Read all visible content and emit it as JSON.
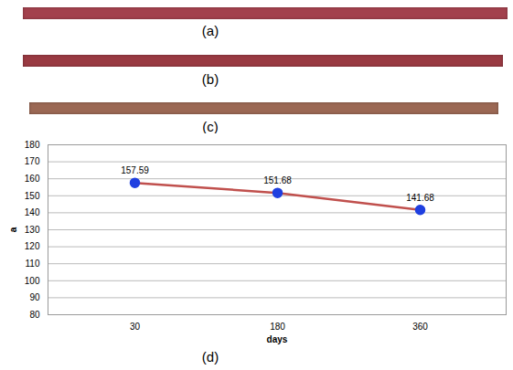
{
  "figure": {
    "strips": [
      {
        "label": "(a)",
        "color": "#a3414d"
      },
      {
        "label": "(b)",
        "color": "#993a42"
      },
      {
        "label": "(c)",
        "color": "#9b6854"
      }
    ]
  },
  "chart_data": {
    "type": "line",
    "title": "(d)",
    "x_label": "days",
    "y_label": "a",
    "categories": [
      30,
      180,
      360
    ],
    "values": [
      157.59,
      151.68,
      141.68
    ],
    "color": "#c0504d",
    "marker": "circle",
    "ylim": [
      80,
      180
    ],
    "yticks": [
      80,
      90,
      100,
      110,
      120,
      130,
      140,
      150,
      160,
      170,
      180
    ],
    "grid": true,
    "data_labels": true
  }
}
